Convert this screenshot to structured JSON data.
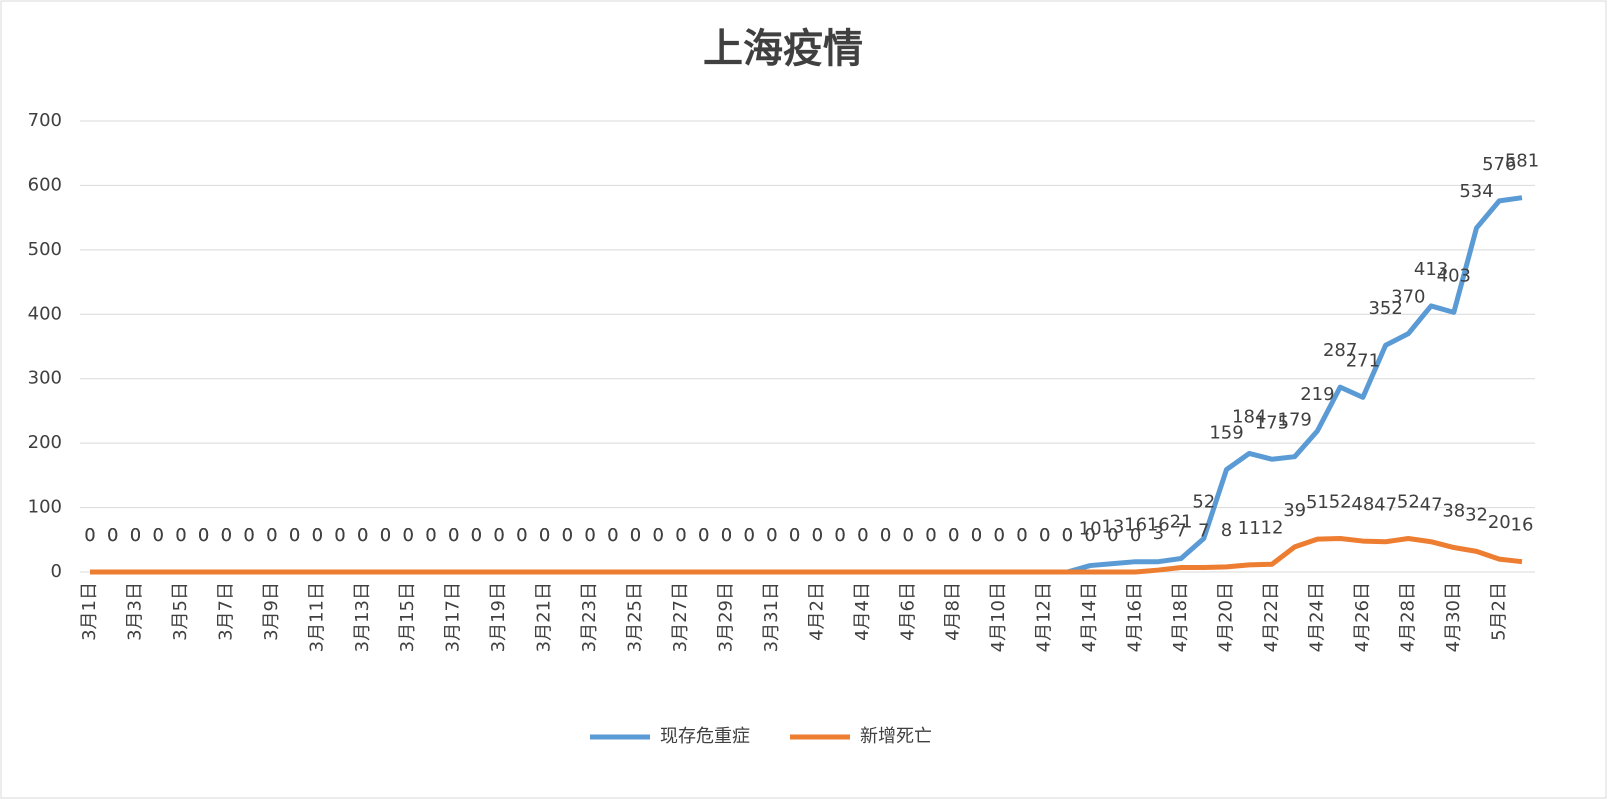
{
  "chart_data": {
    "type": "line",
    "title": "上海疫情",
    "categories": [
      "3月1日",
      null,
      "3月3日",
      null,
      "3月5日",
      null,
      "3月7日",
      null,
      "3月9日",
      null,
      "3月11日",
      null,
      "3月13日",
      null,
      "3月15日",
      null,
      "3月17日",
      null,
      "3月19日",
      null,
      "3月21日",
      null,
      "3月23日",
      null,
      "3月25日",
      null,
      "3月27日",
      null,
      "3月29日",
      null,
      "3月31日",
      null,
      "4月2日",
      null,
      "4月4日",
      null,
      "4月6日",
      null,
      "4月8日",
      null,
      "4月10日",
      null,
      "4月12日",
      null,
      "4月14日",
      null,
      "4月16日",
      null,
      "4月18日",
      null,
      "4月20日",
      null,
      "4月22日",
      null,
      "4月24日",
      null,
      "4月26日",
      null,
      "4月28日",
      null,
      "4月30日",
      null,
      "5月2日",
      null
    ],
    "series": [
      {
        "name": "现存危重症",
        "color": "#5b9bd5",
        "values": [
          0,
          0,
          0,
          0,
          0,
          0,
          0,
          0,
          0,
          0,
          0,
          0,
          0,
          0,
          0,
          0,
          0,
          0,
          0,
          0,
          0,
          0,
          0,
          0,
          0,
          0,
          0,
          0,
          0,
          0,
          0,
          0,
          0,
          0,
          0,
          0,
          0,
          0,
          0,
          0,
          0,
          0,
          0,
          0,
          10,
          13,
          16,
          16,
          21,
          52,
          159,
          184,
          175,
          179,
          219,
          287,
          271,
          352,
          370,
          413,
          403,
          534,
          576,
          581
        ]
      },
      {
        "name": "新增死亡",
        "color": "#ed7d31",
        "values": [
          0,
          0,
          0,
          0,
          0,
          0,
          0,
          0,
          0,
          0,
          0,
          0,
          0,
          0,
          0,
          0,
          0,
          0,
          0,
          0,
          0,
          0,
          0,
          0,
          0,
          0,
          0,
          0,
          0,
          0,
          0,
          0,
          0,
          0,
          0,
          0,
          0,
          0,
          0,
          0,
          0,
          0,
          0,
          0,
          0,
          0,
          0,
          3,
          7,
          7,
          8,
          11,
          12,
          39,
          51,
          52,
          48,
          47,
          52,
          47,
          38,
          32,
          20,
          16
        ]
      }
    ],
    "ylim": [
      0,
      700
    ],
    "yticks": [
      0,
      100,
      200,
      300,
      400,
      500,
      600,
      700
    ],
    "grid": true,
    "legend": "bottom"
  }
}
